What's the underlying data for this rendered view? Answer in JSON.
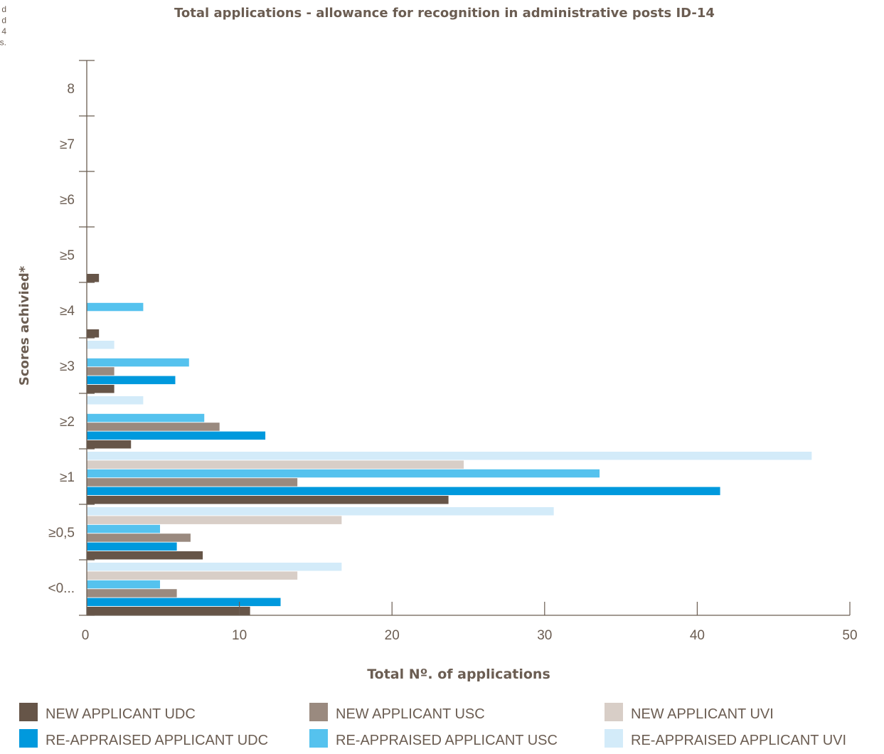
{
  "margin_fragments": [
    "d",
    "d",
    "4",
    "s."
  ],
  "chart_data": {
    "type": "bar",
    "orientation": "horizontal",
    "title": "Total applications - allowance for recognition in administrative posts ID-14",
    "xlabel": "Total Nº. of applications",
    "ylabel": "Scores achivied*",
    "xlim": [
      0,
      50
    ],
    "x_ticks": [
      "0",
      "10",
      "20",
      "30",
      "40",
      "50"
    ],
    "grid": false,
    "legend_position": "bottom",
    "categories": [
      "<0...",
      "≥0,5",
      "≥1",
      "≥2",
      "≥3",
      "≥4",
      "≥5",
      "≥6",
      "≥7",
      "8"
    ],
    "series": [
      {
        "name": "NEW APPLICANT UDC",
        "color": "#665548",
        "values": [
          10.7,
          7.6,
          23.7,
          2.9,
          1.8,
          0.8,
          0.8,
          0,
          0,
          0
        ]
      },
      {
        "name": "RE-APPRAISED APPLICANT UDC",
        "color": "#0099dd",
        "values": [
          12.7,
          5.9,
          41.5,
          11.7,
          5.8,
          0,
          0,
          0,
          0,
          0
        ]
      },
      {
        "name": "NEW APPLICANT USC",
        "color": "#9a8a7f",
        "values": [
          5.9,
          6.8,
          13.8,
          8.7,
          1.8,
          0,
          0,
          0,
          0,
          0
        ]
      },
      {
        "name": "RE-APPRAISED APPLICANT USC",
        "color": "#55c2ee",
        "values": [
          4.8,
          4.8,
          33.6,
          7.7,
          6.7,
          3.7,
          0,
          0,
          0,
          0
        ]
      },
      {
        "name": "NEW APPLICANT UVI",
        "color": "#d8cec7",
        "values": [
          13.8,
          16.7,
          24.7,
          0,
          0,
          0,
          0,
          0,
          0,
          0
        ]
      },
      {
        "name": "RE-APPRAISED APPLICANT UVI",
        "color": "#d3ebf9",
        "values": [
          16.7,
          30.6,
          47.5,
          3.7,
          1.8,
          0,
          0,
          0,
          0,
          0
        ]
      }
    ]
  }
}
